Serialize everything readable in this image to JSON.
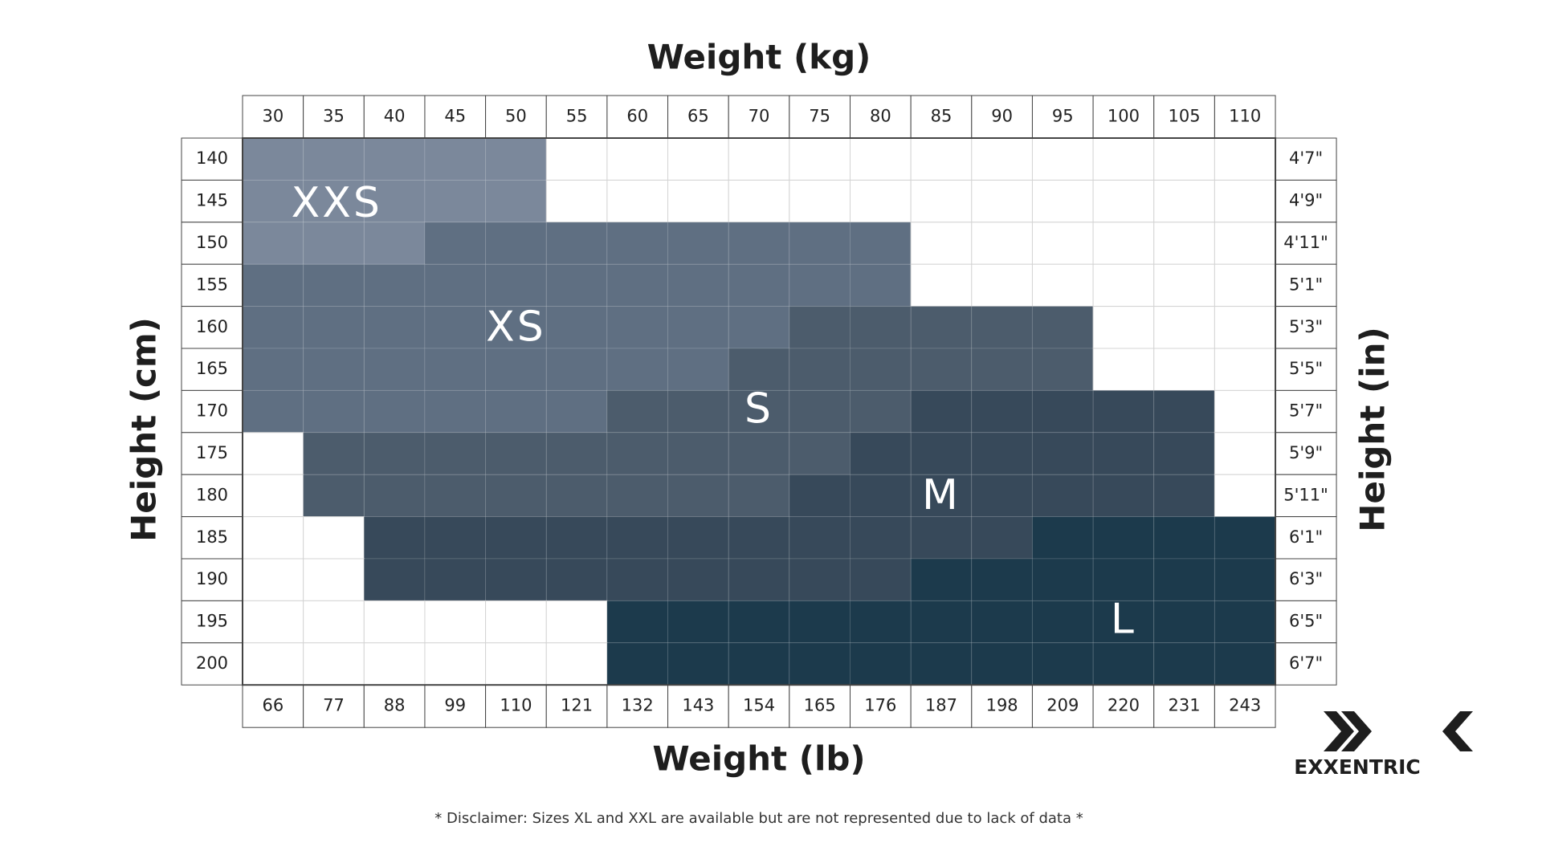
{
  "title_top": "Weight (kg)",
  "title_bottom": "Weight (lb)",
  "title_left": "Height (cm)",
  "title_right": "Height (in)",
  "kg": [
    30,
    35,
    40,
    45,
    50,
    55,
    60,
    65,
    70,
    75,
    80,
    85,
    90,
    95,
    100,
    105,
    110
  ],
  "lb": [
    66,
    77,
    88,
    99,
    110,
    121,
    132,
    143,
    154,
    165,
    176,
    187,
    198,
    209,
    220,
    231,
    243
  ],
  "cm": [
    140,
    145,
    150,
    155,
    160,
    165,
    170,
    175,
    180,
    185,
    190,
    195,
    200
  ],
  "in": [
    "4'7\"",
    "4'9\"",
    "4'11\"",
    "5'1\"",
    "5'3\"",
    "5'5\"",
    "5'7\"",
    "5'9\"",
    "5'11\"",
    "6'1\"",
    "6'3\"",
    "6'5\"",
    "6'7\""
  ],
  "sizes": [
    {
      "label": "XXS",
      "color": "#7b889b"
    },
    {
      "label": "XS",
      "color": "#5f6f82"
    },
    {
      "label": "S",
      "color": "#4c5c6c"
    },
    {
      "label": "M",
      "color": "#37495a"
    },
    {
      "label": "L",
      "color": "#1c3a4c"
    }
  ],
  "disclaimer": "* Disclaimer: Sizes XL and XXL are available but are not represented due to lack of data *",
  "brand": "EXXENTRIC"
}
